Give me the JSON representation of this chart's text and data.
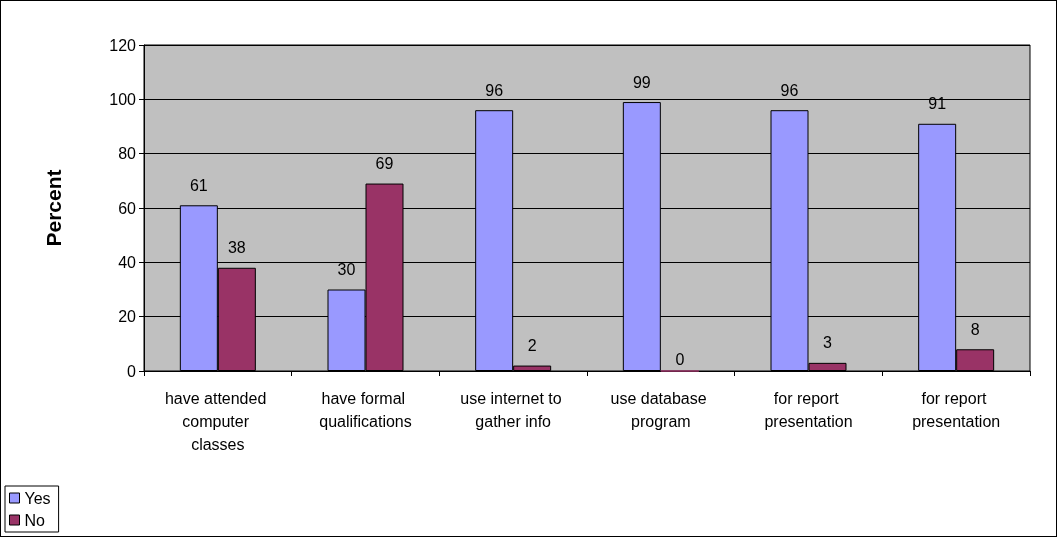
{
  "chart_data": {
    "type": "bar",
    "ylabel": "Percent",
    "categories": [
      "have attended computer classes",
      "have formal qualifications",
      "use internet to gather info",
      "use database program",
      "for report presentation",
      "for report presentation"
    ],
    "series": [
      {
        "name": "Yes",
        "color": "#9999ff",
        "values": [
          61,
          30,
          96,
          99,
          96,
          91
        ]
      },
      {
        "name": "No",
        "color": "#993366",
        "values": [
          38,
          69,
          2,
          0,
          3,
          8
        ]
      }
    ],
    "ylim": [
      0,
      120
    ],
    "yticks": [
      0,
      20,
      40,
      60,
      80,
      100,
      120
    ],
    "grid": "y",
    "legend": "bottom left",
    "data_labels": true
  }
}
